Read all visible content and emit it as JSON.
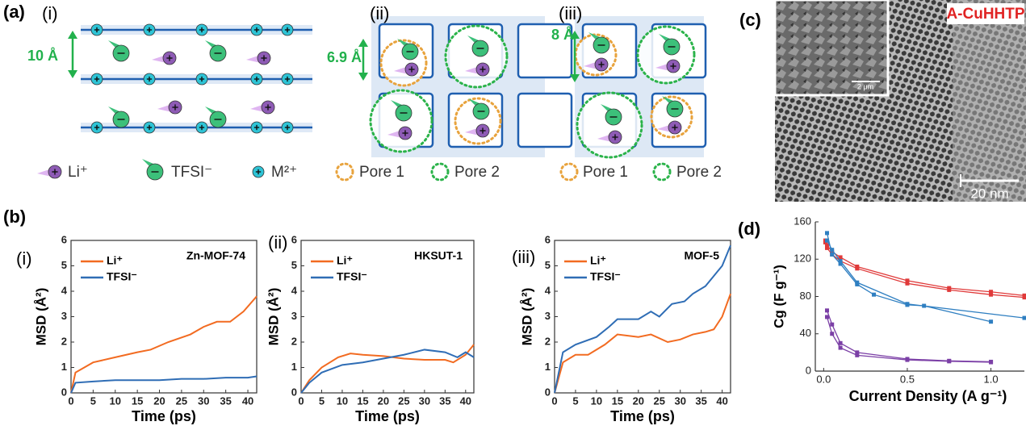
{
  "panel_a": {
    "label": "(a)",
    "i": {
      "label": "(i)",
      "spacing": "10 Å",
      "legend": [
        "Li⁺",
        "TFSI⁻",
        "M²⁺"
      ]
    },
    "ii": {
      "label": "(ii)",
      "spacing": "6.9 Å",
      "legend": [
        "Pore 1",
        "Pore 2"
      ]
    },
    "iii": {
      "label": "(iii)",
      "spacing": "8 Å",
      "legend": [
        "Pore 1",
        "Pore 2"
      ]
    }
  },
  "panel_b": {
    "label": "(b)"
  },
  "panel_c": {
    "label": "(c)",
    "sample": "A-CuHHTP",
    "inset_scale": "2 μm",
    "scale": "20 nm"
  },
  "chart_data": [
    {
      "type": "line",
      "label": "(i)",
      "title": "Zn-MOF-74",
      "x_label": "Time (ps)",
      "y_label": "MSD (Å²)",
      "xlim": [
        0,
        42
      ],
      "ylim": [
        0,
        6
      ],
      "xticks": [
        0,
        5,
        10,
        15,
        20,
        25,
        30,
        35,
        40
      ],
      "yticks": [
        0,
        1,
        2,
        3,
        4,
        5,
        6
      ],
      "series": [
        {
          "name": "Li⁺",
          "color": "#f26b21",
          "x": [
            0,
            1,
            5,
            10,
            15,
            18,
            22,
            27,
            30,
            33,
            36,
            39,
            42
          ],
          "values": [
            0,
            0.8,
            1.2,
            1.4,
            1.6,
            1.7,
            2.0,
            2.3,
            2.6,
            2.8,
            2.8,
            3.2,
            3.8
          ]
        },
        {
          "name": "TFSI⁻",
          "color": "#2f6db5",
          "x": [
            0,
            1,
            5,
            10,
            15,
            20,
            25,
            30,
            35,
            40,
            42
          ],
          "values": [
            0,
            0.4,
            0.45,
            0.5,
            0.5,
            0.5,
            0.55,
            0.55,
            0.6,
            0.6,
            0.65
          ]
        }
      ]
    },
    {
      "type": "line",
      "label": "(ii)",
      "title": "HKSUT-1",
      "x_label": "Time (ps)",
      "y_label": "MSD (Å²)",
      "xlim": [
        0,
        42
      ],
      "ylim": [
        0,
        6
      ],
      "xticks": [
        0,
        5,
        10,
        15,
        20,
        25,
        30,
        35,
        40
      ],
      "yticks": [
        0,
        1,
        2,
        3,
        4,
        5,
        6
      ],
      "series": [
        {
          "name": "Li⁺",
          "color": "#f26b21",
          "x": [
            0,
            2,
            5,
            9,
            12,
            15,
            20,
            25,
            30,
            35,
            37,
            40,
            42
          ],
          "values": [
            0,
            0.5,
            1.0,
            1.4,
            1.55,
            1.5,
            1.45,
            1.35,
            1.3,
            1.3,
            1.2,
            1.5,
            1.9
          ]
        },
        {
          "name": "TFSI⁻",
          "color": "#2f6db5",
          "x": [
            0,
            2,
            5,
            10,
            15,
            20,
            25,
            30,
            35,
            38,
            40,
            42
          ],
          "values": [
            0,
            0.4,
            0.8,
            1.1,
            1.2,
            1.35,
            1.5,
            1.7,
            1.6,
            1.4,
            1.6,
            1.4
          ]
        }
      ]
    },
    {
      "type": "line",
      "label": "(iii)",
      "title": "MOF-5",
      "x_label": "Time (ps)",
      "y_label": "MSD (Å²)",
      "xlim": [
        0,
        42
      ],
      "ylim": [
        0,
        6
      ],
      "xticks": [
        0,
        5,
        10,
        15,
        20,
        25,
        30,
        35,
        40
      ],
      "yticks": [
        0,
        1,
        2,
        3,
        4,
        5,
        6
      ],
      "series": [
        {
          "name": "Li⁺",
          "color": "#f26b21",
          "x": [
            0,
            2,
            5,
            8,
            12,
            15,
            20,
            23,
            27,
            30,
            33,
            36,
            38,
            40,
            42
          ],
          "values": [
            0,
            1.2,
            1.5,
            1.5,
            1.9,
            2.3,
            2.2,
            2.3,
            2.0,
            2.1,
            2.3,
            2.4,
            2.5,
            3.0,
            3.9
          ]
        },
        {
          "name": "TFSI⁻",
          "color": "#2f6db5",
          "x": [
            0,
            2,
            5,
            10,
            13,
            15,
            20,
            23,
            25,
            28,
            31,
            33,
            36,
            38,
            40,
            42
          ],
          "values": [
            0,
            1.6,
            1.9,
            2.2,
            2.6,
            2.9,
            2.9,
            3.2,
            3.0,
            3.5,
            3.6,
            3.9,
            4.2,
            4.6,
            5.0,
            5.8
          ]
        }
      ]
    },
    {
      "type": "scatter-line",
      "label": "(d)",
      "x_label": "Current Density (A g⁻¹)",
      "y_label": "Cg (F g⁻¹)",
      "xlim": [
        -0.05,
        1.2
      ],
      "ylim": [
        0,
        160
      ],
      "xticks": [
        {
          "value": 0,
          "label": "0.0"
        },
        0.5,
        {
          "value": 1,
          "label": "1.0"
        }
      ],
      "yticks": [
        0,
        40,
        80,
        120,
        160
      ],
      "series": [
        {
          "color": "#e03a3a",
          "x": [
            0.01,
            0.02,
            0.05,
            0.1,
            0.2,
            0.5,
            0.75,
            1.0,
            1.2
          ],
          "values": [
            140,
            135,
            128,
            122,
            112,
            97,
            89,
            85,
            81
          ]
        },
        {
          "color": "#e03a3a",
          "x": [
            0.01,
            0.02,
            0.05,
            0.1,
            0.2,
            0.5,
            0.75,
            1.0,
            1.2
          ],
          "values": [
            138,
            132,
            125,
            118,
            110,
            94,
            87,
            82,
            79
          ]
        },
        {
          "color": "#2f7fc1",
          "x": [
            0.02,
            0.05,
            0.1,
            0.2,
            0.3,
            0.5,
            0.6,
            1.0
          ],
          "values": [
            148,
            125,
            115,
            93,
            82,
            71,
            70,
            53
          ]
        },
        {
          "color": "#2f7fc1",
          "x": [
            0.02,
            0.05,
            0.1,
            0.2,
            0.5,
            1.2
          ],
          "values": [
            140,
            130,
            118,
            95,
            72,
            57
          ]
        },
        {
          "color": "#7b3fa6",
          "x": [
            0.02,
            0.05,
            0.1,
            0.2,
            0.5,
            0.75,
            1.0
          ],
          "values": [
            65,
            50,
            30,
            20,
            13,
            11,
            10
          ]
        },
        {
          "color": "#7b3fa6",
          "x": [
            0.02,
            0.05,
            0.1,
            0.2,
            0.5,
            0.75,
            1.0
          ],
          "values": [
            58,
            40,
            25,
            17,
            12,
            10.5,
            9.5
          ]
        }
      ]
    }
  ]
}
